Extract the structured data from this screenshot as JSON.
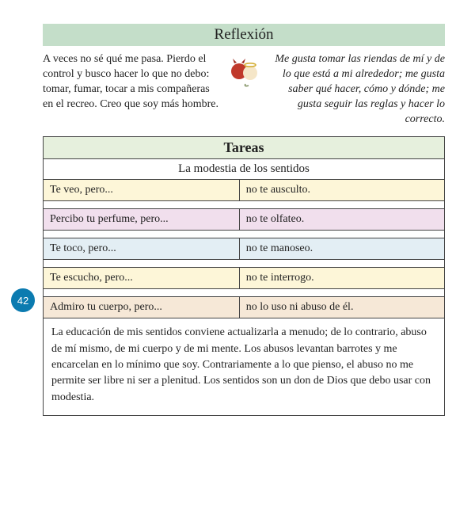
{
  "page_number": "42",
  "reflexion": {
    "title": "Reflexión",
    "left": "A veces no sé qué me pasa. Pierdo el control y busco hacer lo que no debo: tomar, fumar, tocar a mis compañeras en el recreo. Creo que soy más hombre.",
    "right": "Me gusta tomar las riendas de mí y de lo que está a mi alrededor; me gusta saber qué hacer, cómo y dónde; me gusta seguir las reglas y hacer lo correcto.",
    "header_bg": "#c4dec9"
  },
  "tareas": {
    "title": "Tareas",
    "subtitle": "La modestia de los sentidos",
    "header_bg": "#e6f0dd",
    "rows": [
      {
        "left": "Te veo, pero...",
        "right": "no te ausculto.",
        "bg": "#fdf6d8"
      },
      {
        "left": "Percibo tu perfume, pero...",
        "right": "no te olfateo.",
        "bg": "#f1dfed"
      },
      {
        "left": "Te toco, pero...",
        "right": "no te manoseo.",
        "bg": "#e3eef4"
      },
      {
        "left": "Te escucho, pero...",
        "right": "no te interrogo.",
        "bg": "#fdf6d8"
      },
      {
        "left": "Admiro tu cuerpo, pero...",
        "right": "no lo uso ni abuso de él.",
        "bg": "#f6e8d7"
      }
    ],
    "footer": "La educación de mis sentidos conviene actualizarla a menudo; de lo contrario, abuso de mí mismo, de mi cuerpo y de mi mente. Los abusos levantan barrotes y me encarcelan en lo mínimo que soy. Contrariamente a lo que pienso, el abuso no me permite ser libre ni ser a plenitud. Los sentidos son un don de Dios que debo usar con modestia."
  }
}
